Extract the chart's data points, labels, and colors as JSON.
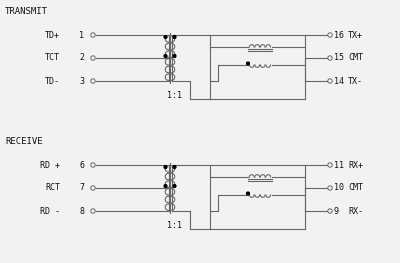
{
  "bg_color": "#f2f2f2",
  "line_color": "#666666",
  "text_color": "#111111",
  "title_transmit": "TRANSMIT",
  "title_receive": "RECEIVE",
  "pin_ratio": "1:1",
  "tx_left_labels": [
    "TD+",
    "TCT",
    "TD-"
  ],
  "tx_left_pins": [
    "1",
    "2",
    "3"
  ],
  "tx_right_pins": [
    "16",
    "15",
    "14"
  ],
  "tx_right_labels": [
    "TX+",
    "CMT",
    "TX-"
  ],
  "rx_left_labels": [
    "RD +",
    "RCT",
    "RD -"
  ],
  "rx_left_pins": [
    "6",
    "7",
    "8"
  ],
  "rx_right_pins": [
    "11",
    "10",
    "9"
  ],
  "rx_right_labels": [
    "RX+",
    "CMT",
    "RX-"
  ]
}
